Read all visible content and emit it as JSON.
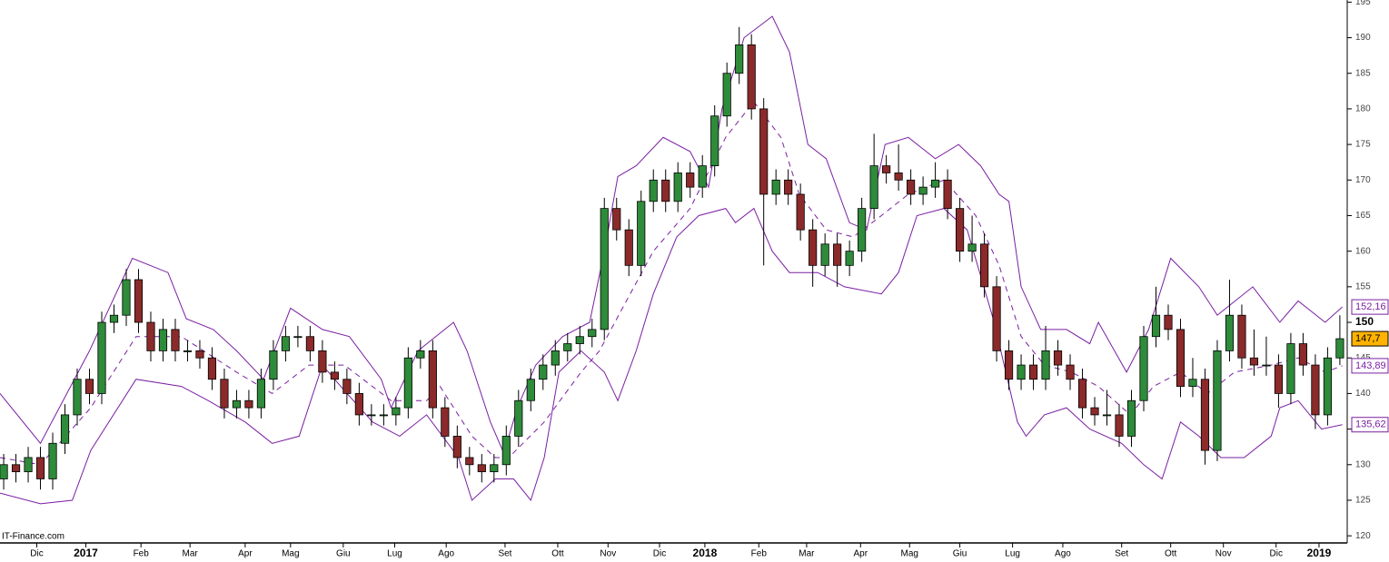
{
  "chart_data": {
    "type": "candlestick",
    "watermark": "IT-Finance.com",
    "xlim": [
      -0.3,
      109.6
    ],
    "ylim": [
      119,
      195.3
    ],
    "yticks": [
      120,
      125,
      130,
      135,
      140,
      145,
      150,
      155,
      160,
      165,
      170,
      175,
      180,
      185,
      190,
      195
    ],
    "highlight_ytick": 150,
    "xticks": [
      {
        "value": 2.7,
        "label": "Dic"
      },
      {
        "value": 6.7,
        "label": "2017"
      },
      {
        "value": 11.2,
        "label": "Feb"
      },
      {
        "value": 15.2,
        "label": "Mar"
      },
      {
        "value": 19.7,
        "label": "Apr"
      },
      {
        "value": 23.4,
        "label": "Mag"
      },
      {
        "value": 27.7,
        "label": "Giu"
      },
      {
        "value": 31.9,
        "label": "Lug"
      },
      {
        "value": 36.1,
        "label": "Ago"
      },
      {
        "value": 40.9,
        "label": "Set"
      },
      {
        "value": 45.2,
        "label": "Ott"
      },
      {
        "value": 49.3,
        "label": "Nov"
      },
      {
        "value": 53.5,
        "label": "Dic"
      },
      {
        "value": 57.2,
        "label": "2018"
      },
      {
        "value": 61.6,
        "label": "Feb"
      },
      {
        "value": 65.5,
        "label": "Mar"
      },
      {
        "value": 69.9,
        "label": "Apr"
      },
      {
        "value": 73.9,
        "label": "Mag"
      },
      {
        "value": 78,
        "label": "Giu"
      },
      {
        "value": 82.3,
        "label": "Lug"
      },
      {
        "value": 86.4,
        "label": "Ago"
      },
      {
        "value": 91.2,
        "label": "Set"
      },
      {
        "value": 95.2,
        "label": "Ott"
      },
      {
        "value": 99.5,
        "label": "Nov"
      },
      {
        "value": 103.8,
        "label": "Dic"
      },
      {
        "value": 107.3,
        "label": "2019"
      }
    ],
    "up_color": "#2e8b3a",
    "down_color": "#8b2a2a",
    "open": [
      128,
      130,
      129,
      131,
      128,
      133,
      137,
      142,
      140,
      150,
      151,
      156,
      150,
      146,
      149,
      146,
      146,
      145,
      142,
      138,
      139,
      138,
      142,
      146,
      148,
      148,
      146,
      143,
      142,
      140,
      137,
      137,
      137,
      138,
      145,
      146,
      138,
      134,
      131,
      130,
      129,
      130,
      134,
      139,
      142,
      144,
      146,
      147,
      148,
      149,
      166,
      163,
      158,
      167,
      170,
      167,
      171,
      169,
      172,
      179,
      185,
      189,
      180,
      168,
      170,
      168,
      163,
      158,
      161,
      158,
      160,
      166,
      172,
      171,
      170,
      168,
      169,
      170,
      166,
      160,
      161,
      155,
      146,
      142,
      144,
      142,
      146,
      144,
      142,
      138,
      137,
      137,
      134,
      139,
      148,
      151,
      149,
      141,
      142,
      132,
      146,
      151,
      145,
      144,
      144,
      140,
      147,
      144,
      137,
      145
    ],
    "high": [
      131.5,
      131.5,
      132.5,
      132.5,
      134.5,
      138.5,
      143.5,
      143.5,
      151.5,
      152.5,
      157.5,
      157.5,
      151.5,
      150.5,
      150.5,
      147.5,
      147.5,
      146.5,
      143.5,
      140.5,
      140.5,
      143.5,
      147.5,
      149.5,
      149.5,
      149.5,
      147.5,
      144.5,
      143.5,
      141.5,
      138.5,
      138.5,
      139.5,
      146.5,
      147.5,
      147.5,
      139.5,
      135.5,
      132.5,
      131.5,
      131.5,
      135.5,
      140.5,
      143.5,
      145.5,
      147.5,
      148.5,
      149.5,
      150.5,
      167.5,
      167.5,
      164.5,
      168.5,
      171.5,
      171.5,
      172.5,
      172.5,
      173.5,
      180.5,
      186.5,
      191.5,
      190.5,
      181.5,
      171.5,
      171.5,
      169.5,
      164.5,
      162.5,
      162.5,
      161.5,
      167.5,
      176.5,
      173.5,
      175,
      171.5,
      170.5,
      172.5,
      171.5,
      167.5,
      165,
      162.5,
      156.5,
      147.5,
      145.5,
      145.5,
      149.5,
      147.5,
      145.5,
      143.5,
      139.5,
      140.5,
      138.5,
      140.5,
      149.5,
      155,
      152.5,
      150.5,
      145,
      143.5,
      147.5,
      156,
      152.5,
      149,
      148,
      145.5,
      148.5,
      148.5,
      145.5,
      146.5,
      151
    ],
    "low": [
      126.5,
      127.5,
      127.5,
      126.5,
      126.5,
      131.5,
      135.5,
      138.5,
      138.5,
      148.5,
      149.5,
      148.5,
      144.5,
      144.5,
      144.5,
      144.5,
      143.5,
      140.5,
      136.5,
      136.5,
      136.5,
      136.5,
      140.5,
      144.5,
      146.5,
      144.5,
      141.5,
      140.5,
      138.5,
      135.5,
      135.5,
      135.5,
      135.5,
      136.5,
      143.5,
      136.5,
      132.5,
      129.5,
      128.5,
      127.5,
      127.5,
      128.5,
      132.5,
      137.5,
      140.5,
      142.5,
      144.5,
      145.5,
      146.5,
      147.5,
      161.5,
      156.5,
      156.5,
      165.5,
      165.5,
      165.5,
      167.5,
      167.5,
      170.5,
      177.5,
      183.5,
      178.5,
      158,
      166.5,
      166.5,
      161.5,
      155,
      156.5,
      155,
      156.5,
      158.5,
      164.5,
      169.5,
      168.5,
      166.5,
      166.5,
      167.5,
      164.5,
      158.5,
      158.5,
      153.5,
      144.5,
      140.5,
      140.5,
      140.5,
      140.5,
      142.5,
      140.5,
      136.5,
      135.5,
      135.5,
      132.5,
      132.5,
      137.5,
      146.5,
      147.5,
      139.5,
      139.5,
      130,
      130.5,
      144.5,
      143.5,
      142.5,
      142.5,
      138,
      138.5,
      142.5,
      135,
      135.5,
      144
    ],
    "close": [
      130,
      129,
      131,
      128,
      133,
      137,
      142,
      140,
      150,
      151,
      156,
      150,
      146,
      149,
      146,
      146,
      145,
      142,
      138,
      139,
      138,
      142,
      146,
      148,
      148,
      146,
      143,
      142,
      140,
      137,
      137,
      137,
      138,
      145,
      146,
      138,
      134,
      131,
      130,
      129,
      130,
      134,
      139,
      142,
      144,
      146,
      147,
      148,
      149,
      166,
      163,
      158,
      167,
      170,
      167,
      171,
      169,
      172,
      179,
      185,
      189,
      180,
      168,
      170,
      168,
      163,
      158,
      161,
      158,
      160,
      166,
      172,
      171,
      170,
      168,
      169,
      170,
      166,
      160,
      161,
      155,
      146,
      142,
      144,
      142,
      146,
      144,
      142,
      138,
      137,
      137,
      134,
      139,
      148,
      151,
      149,
      141,
      142,
      132,
      146,
      151,
      145,
      144,
      144,
      140,
      147,
      144,
      137,
      145,
      147.7
    ],
    "close_last_label": "147,7",
    "close_label_color": "#ffb300",
    "bands": [
      {
        "color": "#7a1fa2",
        "dashed": false,
        "last_label": "152,16",
        "x": [
          -0.3,
          3,
          7,
          10.5,
          13.4,
          14.9,
          17.1,
          19,
          21.2,
          23.4,
          26,
          28.2,
          30.8,
          31.6,
          33.8,
          36.7,
          37.8,
          39.7,
          40.8,
          41.9,
          43.4,
          45.6,
          47.8,
          49,
          50.1,
          51.6,
          53.8,
          56,
          57.5,
          58.6,
          60.4,
          62.7,
          64.1,
          65.6,
          67.1,
          69,
          70.4,
          71.9,
          73.8,
          76,
          77.9,
          79.7,
          81.2,
          82,
          83,
          84.6,
          86.7,
          88.6,
          89.3,
          91.6,
          93.4,
          95.2,
          97.5,
          99,
          101.9,
          104.1,
          105.6,
          107.8,
          109.2
        ],
        "values": [
          140,
          133,
          146,
          159,
          157,
          150.5,
          149,
          146,
          142,
          152,
          149,
          148,
          142,
          138,
          146,
          150,
          146,
          136,
          131.6,
          138,
          144,
          148,
          150,
          160,
          170.5,
          172,
          176,
          174,
          169,
          180,
          190,
          193,
          188,
          175,
          173,
          164,
          163,
          175,
          176,
          173,
          175,
          172,
          168,
          167,
          155,
          149,
          149,
          147,
          150,
          143,
          149,
          159,
          155,
          151,
          155,
          150,
          153,
          150,
          152.16
        ]
      },
      {
        "color": "#7a1fa2",
        "dashed": true,
        "last_label": "143,89",
        "x": [
          -0.3,
          3,
          7.1,
          10.8,
          14.5,
          19,
          21.9,
          24.9,
          27.8,
          31.6,
          34.5,
          35.6,
          38.2,
          40.1,
          41.2,
          44.1,
          47.1,
          48.6,
          50.8,
          53,
          56,
          58.9,
          61.2,
          63.4,
          64.9,
          67.1,
          69.3,
          71.6,
          73.8,
          76.7,
          79.3,
          81.2,
          83,
          84.9,
          87.1,
          89.3,
          91.9,
          93.8,
          96,
          98.2,
          100.4,
          103.4,
          105.6,
          107.8,
          109.2
        ],
        "values": [
          131,
          130,
          138,
          148,
          148,
          143,
          140,
          144,
          144,
          139,
          139,
          141,
          134,
          131,
          131,
          136,
          143,
          146,
          153,
          160,
          166,
          176,
          181,
          176,
          168,
          163,
          162,
          165,
          168,
          170,
          165,
          158,
          148,
          144,
          143,
          141,
          137,
          141,
          143,
          140,
          143,
          144,
          145,
          143,
          143.89
        ]
      },
      {
        "color": "#7a1fa2",
        "dashed": false,
        "last_label": "135,62",
        "x": [
          -0.3,
          3,
          5.6,
          7.1,
          10.8,
          14.5,
          16.7,
          19.7,
          21.9,
          24.1,
          26,
          27.5,
          30.1,
          32.3,
          34.5,
          37.1,
          38.2,
          40.1,
          41.6,
          43,
          44.1,
          45.3,
          47.1,
          49,
          50.1,
          51.6,
          53,
          54.9,
          56.7,
          58.9,
          59.7,
          61.2,
          62.7,
          64.1,
          66.4,
          68.6,
          71.6,
          73,
          74.5,
          76.7,
          78.6,
          80.8,
          82.7,
          83.4,
          84.9,
          86.7,
          88.6,
          91.2,
          93,
          94.5,
          96,
          97.5,
          99.3,
          101.2,
          103.4,
          104.1,
          105.6,
          107.5,
          109.2
        ],
        "values": [
          126,
          124.5,
          125,
          132,
          142,
          141,
          139,
          136,
          133,
          134,
          144,
          141,
          136,
          134,
          137,
          131,
          125,
          128,
          128,
          125,
          131,
          143,
          146,
          143,
          139,
          146,
          154,
          162,
          165,
          166,
          164,
          166,
          160,
          157,
          157,
          155,
          154,
          157,
          165,
          166,
          163,
          150,
          136,
          134,
          137,
          138,
          135,
          133,
          130,
          128,
          136,
          134,
          131,
          131,
          134,
          138,
          139,
          135,
          135.62
        ]
      }
    ]
  }
}
